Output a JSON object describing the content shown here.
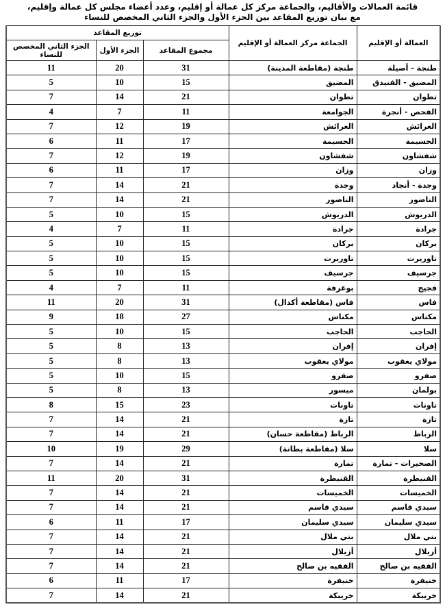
{
  "title": {
    "line1": "قائمة العمالات والأقاليم، والجماعة مركز كل عمالة أو إقليم، وعدد أعضاء مجلس كل عمالة وإقليم،",
    "line2": "مع بيان توزيع المقاعد بين الجزء الأول والجزء الثاني المخصص للنساء"
  },
  "headers": {
    "prefecture": "العمالة أو الإقليم",
    "commune": "الجماعة مركز العمالة أو الإقليم",
    "distribution": "توزيع المقاعد",
    "total": "مجموع المقاعد",
    "first_part": "الجزء الأول",
    "second_part": "الجزء الثاني المخصص للنساء"
  },
  "rows": [
    {
      "prefecture": "طنجة - أصيلة",
      "commune": "طنجة (مقاطعة المدينة)",
      "total": "31",
      "first": "20",
      "second": "11"
    },
    {
      "prefecture": "المضيق - الفنيدق",
      "commune": "المضيق",
      "total": "15",
      "first": "10",
      "second": "5"
    },
    {
      "prefecture": "تطوان",
      "commune": "تطوان",
      "total": "21",
      "first": "14",
      "second": "7"
    },
    {
      "prefecture": "الفحص - أنجرة",
      "commune": "الجوامعة",
      "total": "11",
      "first": "7",
      "second": "4"
    },
    {
      "prefecture": "العرائش",
      "commune": "العرائش",
      "total": "19",
      "first": "12",
      "second": "7"
    },
    {
      "prefecture": "الحسيمة",
      "commune": "الحسيمة",
      "total": "17",
      "first": "11",
      "second": "6"
    },
    {
      "prefecture": "شفشاون",
      "commune": "شفشاون",
      "total": "19",
      "first": "12",
      "second": "7"
    },
    {
      "prefecture": "وزان",
      "commune": "وزان",
      "total": "17",
      "first": "11",
      "second": "6"
    },
    {
      "prefecture": "وجدة - أنجاد",
      "commune": "وجدة",
      "total": "21",
      "first": "14",
      "second": "7"
    },
    {
      "prefecture": "الناضور",
      "commune": "الناضور",
      "total": "21",
      "first": "14",
      "second": "7"
    },
    {
      "prefecture": "الدريوش",
      "commune": "الدريوش",
      "total": "15",
      "first": "10",
      "second": "5"
    },
    {
      "prefecture": "جرادة",
      "commune": "جرادة",
      "total": "11",
      "first": "7",
      "second": "4"
    },
    {
      "prefecture": "بركان",
      "commune": "بركان",
      "total": "15",
      "first": "10",
      "second": "5"
    },
    {
      "prefecture": "تاوريرت",
      "commune": "تاوريرت",
      "total": "15",
      "first": "10",
      "second": "5"
    },
    {
      "prefecture": "جرسيف",
      "commune": "جرسيف",
      "total": "15",
      "first": "10",
      "second": "5"
    },
    {
      "prefecture": "فجيج",
      "commune": "بوعرفة",
      "total": "11",
      "first": "7",
      "second": "4"
    },
    {
      "prefecture": "فاس",
      "commune": "فاس (مقاطعة أكدال)",
      "total": "31",
      "first": "20",
      "second": "11"
    },
    {
      "prefecture": "مكناس",
      "commune": "مكناس",
      "total": "27",
      "first": "18",
      "second": "9"
    },
    {
      "prefecture": "الحاجب",
      "commune": "الحاجب",
      "total": "15",
      "first": "10",
      "second": "5"
    },
    {
      "prefecture": "إفران",
      "commune": "إفران",
      "total": "13",
      "first": "8",
      "second": "5"
    },
    {
      "prefecture": "مولاي يعقوب",
      "commune": "مولاي يعقوب",
      "total": "13",
      "first": "8",
      "second": "5"
    },
    {
      "prefecture": "صفرو",
      "commune": "صفرو",
      "total": "15",
      "first": "10",
      "second": "5"
    },
    {
      "prefecture": "بولمان",
      "commune": "ميسور",
      "total": "13",
      "first": "8",
      "second": "5"
    },
    {
      "prefecture": "تاونات",
      "commune": "تاونات",
      "total": "23",
      "first": "15",
      "second": "8"
    },
    {
      "prefecture": "تازة",
      "commune": "تازة",
      "total": "21",
      "first": "14",
      "second": "7"
    },
    {
      "prefecture": "الرباط",
      "commune": "الرباط (مقاطعة حسان)",
      "total": "21",
      "first": "14",
      "second": "7"
    },
    {
      "prefecture": "سلا",
      "commune": "سلا (مقاطعة بطانة)",
      "total": "29",
      "first": "19",
      "second": "10"
    },
    {
      "prefecture": "الصخيرات - تمارة",
      "commune": "تمارة",
      "total": "21",
      "first": "14",
      "second": "7"
    },
    {
      "prefecture": "القنيطرة",
      "commune": "القنيطرة",
      "total": "31",
      "first": "20",
      "second": "11"
    },
    {
      "prefecture": "الخميسات",
      "commune": "الخميسات",
      "total": "21",
      "first": "14",
      "second": "7"
    },
    {
      "prefecture": "سيدي قاسم",
      "commune": "سيدي قاسم",
      "total": "21",
      "first": "14",
      "second": "7"
    },
    {
      "prefecture": "سيدي سليمان",
      "commune": "سيدي سليمان",
      "total": "17",
      "first": "11",
      "second": "6"
    },
    {
      "prefecture": "بني ملال",
      "commune": "بني ملال",
      "total": "21",
      "first": "14",
      "second": "7"
    },
    {
      "prefecture": "أزيلال",
      "commune": "أزيلال",
      "total": "21",
      "first": "14",
      "second": "7"
    },
    {
      "prefecture": "الفقيه بن صالح",
      "commune": "الفقيه بن صالح",
      "total": "21",
      "first": "14",
      "second": "7"
    },
    {
      "prefecture": "خنيفرة",
      "commune": "خنيفرة",
      "total": "17",
      "first": "11",
      "second": "6"
    },
    {
      "prefecture": "خريبكة",
      "commune": "خريبكة",
      "total": "21",
      "first": "14",
      "second": "7"
    }
  ]
}
